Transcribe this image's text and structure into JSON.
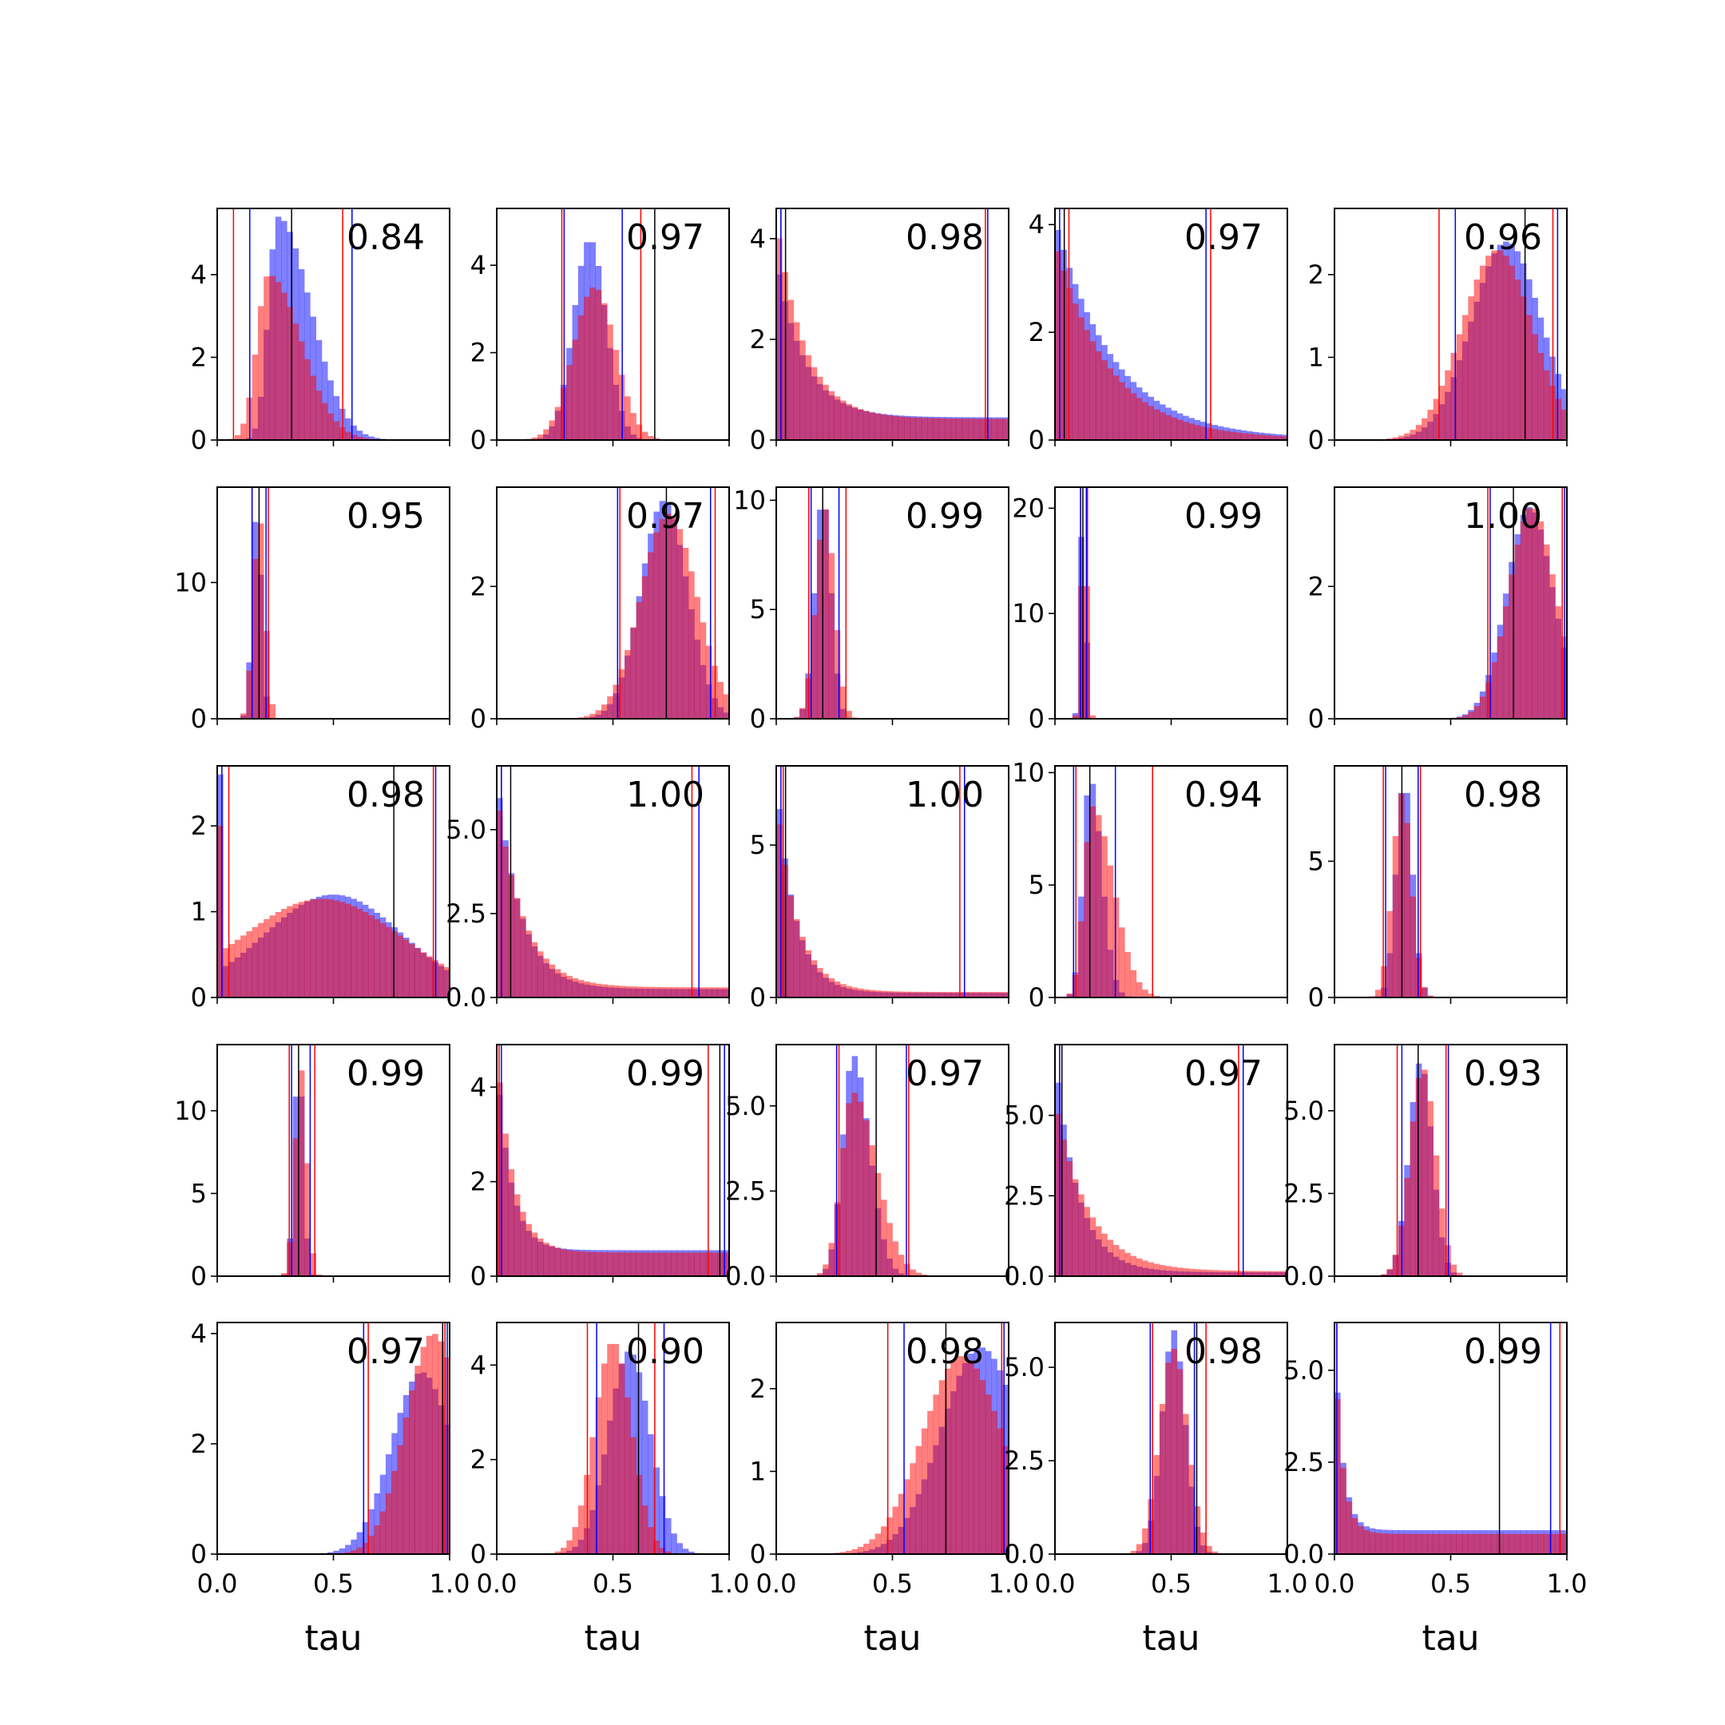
{
  "chart_data": {
    "type": "histogram-grid",
    "rows": 5,
    "cols": 5,
    "xlabel": "tau",
    "xlim": [
      0.0,
      1.0
    ],
    "xticks": [
      0.0,
      0.5,
      1.0
    ],
    "x_tick_labels": [
      "0.0",
      "0.5",
      "1.0"
    ],
    "bins": 40,
    "series": [
      {
        "name": "blue histogram",
        "color": "#0000ff",
        "alpha": 0.5
      },
      {
        "name": "red histogram",
        "color": "#ff0000",
        "alpha": 0.5
      }
    ],
    "line_colors": {
      "red": "#ff0000",
      "blue": "#0000ff",
      "black": "#000000"
    },
    "panels": [
      {
        "label": "0.84",
        "ylim": [
          0,
          5.6
        ],
        "yticks": [
          0,
          2,
          4
        ],
        "ytick_labels": [
          "0",
          "2",
          "4"
        ],
        "blue": {
          "type": "skew",
          "mode": 0.26,
          "sr": 0.04,
          "tr": 0.14,
          "peak": 5.4
        },
        "red": {
          "type": "skew",
          "mode": 0.22,
          "sr": 0.05,
          "tr": 0.14,
          "peak": 4.0
        },
        "red_lines": [
          0.07,
          0.54
        ],
        "blue_lines": [
          0.14,
          0.58
        ],
        "black_lines": [
          0.32
        ]
      },
      {
        "label": "0.97",
        "ylim": [
          0,
          5.3
        ],
        "yticks": [
          0,
          2,
          4
        ],
        "ytick_labels": [
          "0",
          "2",
          "4"
        ],
        "blue": {
          "type": "gauss",
          "mean": 0.4,
          "sd": 0.07,
          "peak": 4.6
        },
        "red": {
          "type": "gauss",
          "mean": 0.42,
          "sd": 0.09,
          "peak": 3.5
        },
        "red_lines": [
          0.28,
          0.62
        ],
        "blue_lines": [
          0.29,
          0.54
        ],
        "black_lines": [
          0.68
        ]
      },
      {
        "label": "0.98",
        "ylim": [
          0,
          4.6
        ],
        "yticks": [
          0,
          2,
          4
        ],
        "ytick_labels": [
          "0",
          "2",
          "4"
        ],
        "blue": {
          "type": "decay",
          "scale": 0.12,
          "peak": 3.6,
          "floor": 0.45
        },
        "red": {
          "type": "decay",
          "scale": 0.12,
          "peak": 4.4,
          "floor": 0.42
        },
        "red_lines": [
          0.02,
          0.9
        ],
        "blue_lines": [
          0.02,
          0.91
        ],
        "black_lines": [
          0.04
        ]
      },
      {
        "label": "0.97",
        "ylim": [
          0,
          4.3
        ],
        "yticks": [
          0,
          2,
          4
        ],
        "ytick_labels": [
          "0",
          "2",
          "4"
        ],
        "blue": {
          "type": "decay",
          "scale": 0.25,
          "peak": 4.1,
          "floor": 0.02
        },
        "red": {
          "type": "decay",
          "scale": 0.23,
          "peak": 3.7,
          "floor": 0.02
        },
        "red_lines": [
          0.06,
          0.67
        ],
        "blue_lines": [
          0.02,
          0.65
        ],
        "black_lines": [
          0.04
        ]
      },
      {
        "label": "0.96",
        "ylim": [
          0,
          2.8
        ],
        "yticks": [
          0,
          1,
          2
        ],
        "ytick_labels": [
          "0",
          "1",
          "2"
        ],
        "blue": {
          "type": "gauss",
          "mean": 0.74,
          "sd": 0.15,
          "peak": 2.4
        },
        "red": {
          "type": "gauss",
          "mean": 0.7,
          "sd": 0.15,
          "peak": 2.3
        },
        "red_lines": [
          0.45,
          0.94
        ],
        "blue_lines": [
          0.52,
          0.96
        ],
        "black_lines": [
          0.82
        ]
      },
      {
        "label": "0.95",
        "ylim": [
          0,
          17
        ],
        "yticks": [
          0,
          10
        ],
        "ytick_labels": [
          "0",
          "10"
        ],
        "blue": {
          "type": "gauss",
          "mean": 0.17,
          "sd": 0.02,
          "peak": 15.5
        },
        "red": {
          "type": "gauss",
          "mean": 0.18,
          "sd": 0.025,
          "peak": 15.0
        },
        "red_lines": [
          0.15,
          0.22
        ],
        "blue_lines": [
          0.15,
          0.21
        ],
        "black_lines": [
          0.18
        ]
      },
      {
        "label": "0.97",
        "ylim": [
          0,
          3.5
        ],
        "yticks": [
          0,
          2
        ],
        "ytick_labels": [
          "0",
          "2"
        ],
        "blue": {
          "type": "gauss",
          "mean": 0.72,
          "sd": 0.1,
          "peak": 3.3
        },
        "red": {
          "type": "gauss",
          "mean": 0.74,
          "sd": 0.12,
          "peak": 3.1
        },
        "red_lines": [
          0.53,
          0.94
        ],
        "blue_lines": [
          0.52,
          0.92
        ],
        "black_lines": [
          0.73
        ]
      },
      {
        "label": "0.99",
        "ylim": [
          0,
          10.6
        ],
        "yticks": [
          0,
          5,
          10
        ],
        "ytick_labels": [
          "0",
          "5",
          "10"
        ],
        "blue": {
          "type": "gauss",
          "mean": 0.2,
          "sd": 0.035,
          "peak": 10.2
        },
        "red": {
          "type": "gauss",
          "mean": 0.21,
          "sd": 0.04,
          "peak": 9.6
        },
        "red_lines": [
          0.14,
          0.3
        ],
        "blue_lines": [
          0.15,
          0.27
        ],
        "black_lines": [
          0.2
        ]
      },
      {
        "label": "0.99",
        "ylim": [
          0,
          22
        ],
        "yticks": [
          0,
          10,
          20
        ],
        "ytick_labels": [
          "0",
          "10",
          "20"
        ],
        "blue": {
          "type": "gauss",
          "mean": 0.12,
          "sd": 0.012,
          "peak": 21
        },
        "red": {
          "type": "gauss",
          "mean": 0.125,
          "sd": 0.013,
          "peak": 20
        },
        "red_lines": [
          0.11,
          0.14
        ],
        "blue_lines": [
          0.11,
          0.135
        ],
        "black_lines": [
          0.12
        ]
      },
      {
        "label": "1.00",
        "ylim": [
          0,
          3.5
        ],
        "yticks": [
          0,
          2
        ],
        "ytick_labels": [
          "0",
          "2"
        ],
        "blue": {
          "type": "gauss",
          "mean": 0.84,
          "sd": 0.1,
          "peak": 3.2
        },
        "red": {
          "type": "gauss",
          "mean": 0.85,
          "sd": 0.1,
          "peak": 3.2
        },
        "red_lines": [
          0.66,
          0.98
        ],
        "blue_lines": [
          0.67,
          0.99
        ],
        "black_lines": [
          0.77
        ]
      },
      {
        "label": "0.98",
        "ylim": [
          0,
          2.7
        ],
        "yticks": [
          0,
          1,
          2
        ],
        "ytick_labels": [
          "0",
          "1",
          "2"
        ],
        "blue": {
          "type": "gauss",
          "mean": 0.5,
          "sd": 0.3,
          "peak": 1.2,
          "spike": 2.6
        },
        "red": {
          "type": "gauss",
          "mean": 0.45,
          "sd": 0.35,
          "peak": 1.15,
          "spike": 2.0
        },
        "red_lines": [
          0.05,
          0.93
        ],
        "blue_lines": [
          0.02,
          0.94
        ],
        "black_lines": [
          0.76
        ]
      },
      {
        "label": "1.00",
        "ylim": [
          0,
          6.9
        ],
        "yticks": [
          0,
          2.5,
          5.0
        ],
        "ytick_labels": [
          "0.0",
          "2.5",
          "5.0"
        ],
        "blue": {
          "type": "decay",
          "scale": 0.1,
          "peak": 6.7,
          "floor": 0.25
        },
        "red": {
          "type": "decay",
          "scale": 0.11,
          "peak": 6.2,
          "floor": 0.3
        },
        "red_lines": [
          0.02,
          0.84
        ],
        "blue_lines": [
          0.02,
          0.87
        ],
        "black_lines": [
          0.06
        ]
      },
      {
        "label": "1.00",
        "ylim": [
          0,
          7.6
        ],
        "yticks": [
          0,
          5
        ],
        "ytick_labels": [
          "0",
          "5"
        ],
        "blue": {
          "type": "decay",
          "scale": 0.08,
          "peak": 7.2,
          "floor": 0.15
        },
        "red": {
          "type": "decay",
          "scale": 0.09,
          "peak": 6.5,
          "floor": 0.18
        },
        "red_lines": [
          0.03,
          0.79
        ],
        "blue_lines": [
          0.02,
          0.81
        ],
        "black_lines": [
          0.04
        ]
      },
      {
        "label": "0.94",
        "ylim": [
          0,
          10.3
        ],
        "yticks": [
          0,
          5,
          10
        ],
        "ytick_labels": [
          "0",
          "5",
          "10"
        ],
        "blue": {
          "type": "skew",
          "mode": 0.15,
          "sr": 0.03,
          "tr": 0.05,
          "peak": 9.8
        },
        "red": {
          "type": "skew",
          "mode": 0.16,
          "sr": 0.035,
          "tr": 0.09,
          "peak": 8.5
        },
        "red_lines": [
          0.09,
          0.42
        ],
        "blue_lines": [
          0.08,
          0.26
        ],
        "black_lines": [
          0.15
        ]
      },
      {
        "label": "0.98",
        "ylim": [
          0,
          8.5
        ],
        "yticks": [
          0,
          5
        ],
        "ytick_labels": [
          "0",
          "5"
        ],
        "blue": {
          "type": "gauss",
          "mean": 0.3,
          "sd": 0.035,
          "peak": 8.0
        },
        "red": {
          "type": "gauss",
          "mean": 0.29,
          "sd": 0.04,
          "peak": 7.5
        },
        "red_lines": [
          0.21,
          0.37
        ],
        "blue_lines": [
          0.22,
          0.36
        ],
        "black_lines": [
          0.29
        ]
      },
      {
        "label": "0.99",
        "ylim": [
          0,
          14
        ],
        "yticks": [
          0,
          5,
          10
        ],
        "ytick_labels": [
          "0",
          "5",
          "10"
        ],
        "blue": {
          "type": "gauss",
          "mean": 0.35,
          "sd": 0.02,
          "peak": 13.2
        },
        "red": {
          "type": "gauss",
          "mean": 0.36,
          "sd": 0.025,
          "peak": 12.5
        },
        "red_lines": [
          0.31,
          0.42
        ],
        "blue_lines": [
          0.32,
          0.4
        ],
        "black_lines": [
          0.35
        ]
      },
      {
        "label": "0.99",
        "ylim": [
          0,
          4.9
        ],
        "yticks": [
          0,
          2,
          4
        ],
        "ytick_labels": [
          "0",
          "2",
          "4"
        ],
        "blue": {
          "type": "decay",
          "scale": 0.06,
          "peak": 4.6,
          "floor": 0.55
        },
        "red": {
          "type": "decay",
          "scale": 0.07,
          "peak": 4.8,
          "floor": 0.5
        },
        "red_lines": [
          0.01,
          0.91
        ],
        "blue_lines": [
          0.02,
          0.98
        ],
        "black_lines": [
          0.96
        ]
      },
      {
        "label": "0.97",
        "ylim": [
          0,
          6.8
        ],
        "yticks": [
          0,
          2.5,
          5.0
        ],
        "ytick_labels": [
          "0.0",
          "2.5",
          "5.0"
        ],
        "blue": {
          "type": "skew",
          "mode": 0.33,
          "sr": 0.045,
          "tr": 0.07,
          "peak": 6.5
        },
        "red": {
          "type": "skew",
          "mode": 0.33,
          "sr": 0.05,
          "tr": 0.1,
          "peak": 5.4
        },
        "red_lines": [
          0.27,
          0.57
        ],
        "blue_lines": [
          0.26,
          0.56
        ],
        "black_lines": [
          0.43
        ]
      },
      {
        "label": "0.97",
        "ylim": [
          0,
          7.2
        ],
        "yticks": [
          0,
          2.5,
          5.0
        ],
        "ytick_labels": [
          "0.0",
          "2.5",
          "5.0"
        ],
        "blue": {
          "type": "decay",
          "scale": 0.1,
          "peak": 6.8,
          "floor": 0.12
        },
        "red": {
          "type": "decay",
          "scale": 0.14,
          "peak": 5.5,
          "floor": 0.15
        },
        "red_lines": [
          0.02,
          0.79
        ],
        "blue_lines": [
          0.02,
          0.81
        ],
        "black_lines": [
          0.03
        ]
      },
      {
        "label": "0.93",
        "ylim": [
          0,
          7.0
        ],
        "yticks": [
          0,
          2.5,
          5.0
        ],
        "ytick_labels": [
          "0.0",
          "2.5",
          "5.0"
        ],
        "blue": {
          "type": "gauss",
          "mean": 0.37,
          "sd": 0.05,
          "peak": 6.5
        },
        "red": {
          "type": "gauss",
          "mean": 0.38,
          "sd": 0.055,
          "peak": 6.3
        },
        "red_lines": [
          0.27,
          0.48
        ],
        "blue_lines": [
          0.29,
          0.49
        ],
        "black_lines": [
          0.36
        ]
      },
      {
        "label": "0.97",
        "ylim": [
          0,
          4.2
        ],
        "yticks": [
          0,
          2,
          4
        ],
        "ytick_labels": [
          "0",
          "2",
          "4"
        ],
        "blue": {
          "type": "gauss",
          "mean": 0.88,
          "sd": 0.13,
          "peak": 3.3
        },
        "red": {
          "type": "gauss",
          "mean": 0.93,
          "sd": 0.12,
          "peak": 4.0
        },
        "red_lines": [
          0.65,
          0.98
        ],
        "blue_lines": [
          0.63,
          0.99
        ],
        "black_lines": [
          0.97
        ]
      },
      {
        "label": "0.90",
        "ylim": [
          0,
          4.9
        ],
        "yticks": [
          0,
          2,
          4
        ],
        "ytick_labels": [
          "0",
          "2",
          "4"
        ],
        "blue": {
          "type": "gauss",
          "mean": 0.57,
          "sd": 0.09,
          "peak": 4.3
        },
        "red": {
          "type": "gauss",
          "mean": 0.5,
          "sd": 0.08,
          "peak": 4.5
        },
        "red_lines": [
          0.39,
          0.68
        ],
        "blue_lines": [
          0.43,
          0.72
        ],
        "black_lines": [
          0.61
        ]
      },
      {
        "label": "0.98",
        "ylim": [
          0,
          2.8
        ],
        "yticks": [
          0,
          1,
          2
        ],
        "ytick_labels": [
          "0",
          "1",
          "2"
        ],
        "blue": {
          "type": "gauss",
          "mean": 0.88,
          "sd": 0.17,
          "peak": 2.5
        },
        "red": {
          "type": "gauss",
          "mean": 0.8,
          "sd": 0.17,
          "peak": 2.4
        },
        "red_lines": [
          0.48,
          0.97
        ],
        "blue_lines": [
          0.55,
          0.98
        ],
        "black_lines": [
          0.73
        ]
      },
      {
        "label": "0.98",
        "ylim": [
          0,
          6.2
        ],
        "yticks": [
          0,
          2.5,
          5.0
        ],
        "ytick_labels": [
          "0.0",
          "2.5",
          "5.0"
        ],
        "blue": {
          "type": "gauss",
          "mean": 0.51,
          "sd": 0.05,
          "peak": 6.0
        },
        "red": {
          "type": "gauss",
          "mean": 0.51,
          "sd": 0.06,
          "peak": 5.5
        },
        "red_lines": [
          0.42,
          0.65
        ],
        "blue_lines": [
          0.41,
          0.6
        ],
        "black_lines": [
          0.61
        ]
      },
      {
        "label": "0.99",
        "ylim": [
          0,
          6.3
        ],
        "yticks": [
          0,
          2.5,
          5.0
        ],
        "ytick_labels": [
          "0.0",
          "2.5",
          "5.0"
        ],
        "blue": {
          "type": "decay",
          "scale": 0.035,
          "peak": 6.0,
          "floor": 0.65
        },
        "red": {
          "type": "decay",
          "scale": 0.035,
          "peak": 5.8,
          "floor": 0.55
        },
        "red_lines": [
          0.01,
          0.97
        ],
        "blue_lines": [
          0.01,
          0.93
        ],
        "black_lines": [
          0.71
        ]
      }
    ]
  }
}
